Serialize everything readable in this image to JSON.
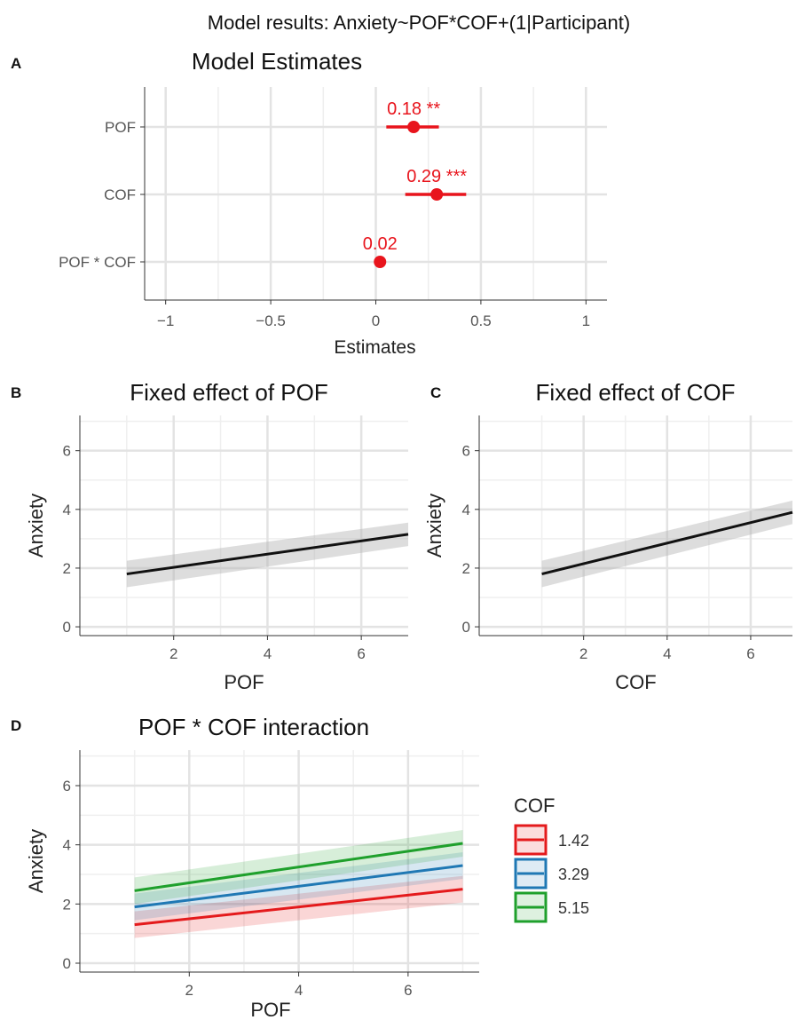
{
  "figure": {
    "title": "Model results: Anxiety~POF*COF+(1|Participant)"
  },
  "colors": {
    "estimate_red": "#e8141c",
    "line_black": "#111111",
    "ribbon_gray": "#b3b3b3",
    "grid_gray": "#e3e3e3",
    "axis_text_gray": "#555555",
    "cof_low": "#e41a1c",
    "cof_mid": "#1f78b4",
    "cof_high": "#1fa02c"
  },
  "chart_data": [
    {
      "panel": "A",
      "type": "scatter",
      "title": "Model Estimates",
      "xlabel": "Estimates",
      "ylabel": "",
      "xlim": [
        -1.1,
        1.1
      ],
      "x_ticks": [
        -1,
        -0.5,
        0,
        0.5,
        1
      ],
      "x_tick_labels": [
        "−1",
        "−0.5",
        "0",
        "0.5",
        "1"
      ],
      "grid": true,
      "terms": [
        {
          "label": "POF",
          "estimate": 0.18,
          "ci": [
            0.05,
            0.3
          ],
          "annotation": "0.18 **"
        },
        {
          "label": "COF",
          "estimate": 0.29,
          "ci": [
            0.14,
            0.43
          ],
          "annotation": "0.29 ***"
        },
        {
          "label": "POF * COF",
          "estimate": 0.02,
          "ci": [
            0.0,
            0.04
          ],
          "annotation": "0.02"
        }
      ]
    },
    {
      "panel": "B",
      "type": "line",
      "title": "Fixed effect of POF",
      "xlabel": "POF",
      "ylabel": "Anxiety",
      "xlim": [
        0.0,
        7.0
      ],
      "ylim": [
        -0.3,
        7.2
      ],
      "x_ticks": [
        2,
        4,
        6
      ],
      "y_ticks": [
        0,
        2,
        4,
        6
      ],
      "grid": true,
      "series": [
        {
          "x": [
            1,
            7
          ],
          "y": [
            1.8,
            3.15
          ],
          "ci_low": [
            1.35,
            2.75
          ],
          "ci_high": [
            2.25,
            3.55
          ]
        }
      ]
    },
    {
      "panel": "C",
      "type": "line",
      "title": "Fixed effect of COF",
      "xlabel": "COF",
      "ylabel": "Anxiety",
      "xlim": [
        -0.5,
        7.0
      ],
      "ylim": [
        -0.3,
        7.2
      ],
      "x_ticks": [
        2,
        4,
        6
      ],
      "y_ticks": [
        0,
        2,
        4,
        6
      ],
      "grid": true,
      "series": [
        {
          "x": [
            1,
            7
          ],
          "y": [
            1.8,
            3.9
          ],
          "ci_low": [
            1.35,
            3.5
          ],
          "ci_high": [
            2.25,
            4.3
          ]
        }
      ]
    },
    {
      "panel": "D",
      "type": "line",
      "title": "POF * COF interaction",
      "xlabel": "POF",
      "ylabel": "Anxiety",
      "xlim": [
        0.0,
        7.3
      ],
      "ylim": [
        -0.3,
        7.2
      ],
      "x_ticks": [
        2,
        4,
        6
      ],
      "y_ticks": [
        0,
        2,
        4,
        6
      ],
      "grid": true,
      "legend_title": "COF",
      "legend_position": "right",
      "series": [
        {
          "name": "1.42",
          "x": [
            1,
            7
          ],
          "y": [
            1.3,
            2.5
          ],
          "ci_low": [
            0.85,
            2.05
          ],
          "ci_high": [
            1.75,
            2.95
          ]
        },
        {
          "name": "3.29",
          "x": [
            1,
            7
          ],
          "y": [
            1.9,
            3.3
          ],
          "ci_low": [
            1.45,
            2.85
          ],
          "ci_high": [
            2.35,
            3.75
          ]
        },
        {
          "name": "5.15",
          "x": [
            1,
            7
          ],
          "y": [
            2.45,
            4.05
          ],
          "ci_low": [
            2.0,
            3.6
          ],
          "ci_high": [
            2.9,
            4.5
          ]
        }
      ]
    }
  ],
  "panel_tags": [
    "A",
    "B",
    "C",
    "D"
  ]
}
